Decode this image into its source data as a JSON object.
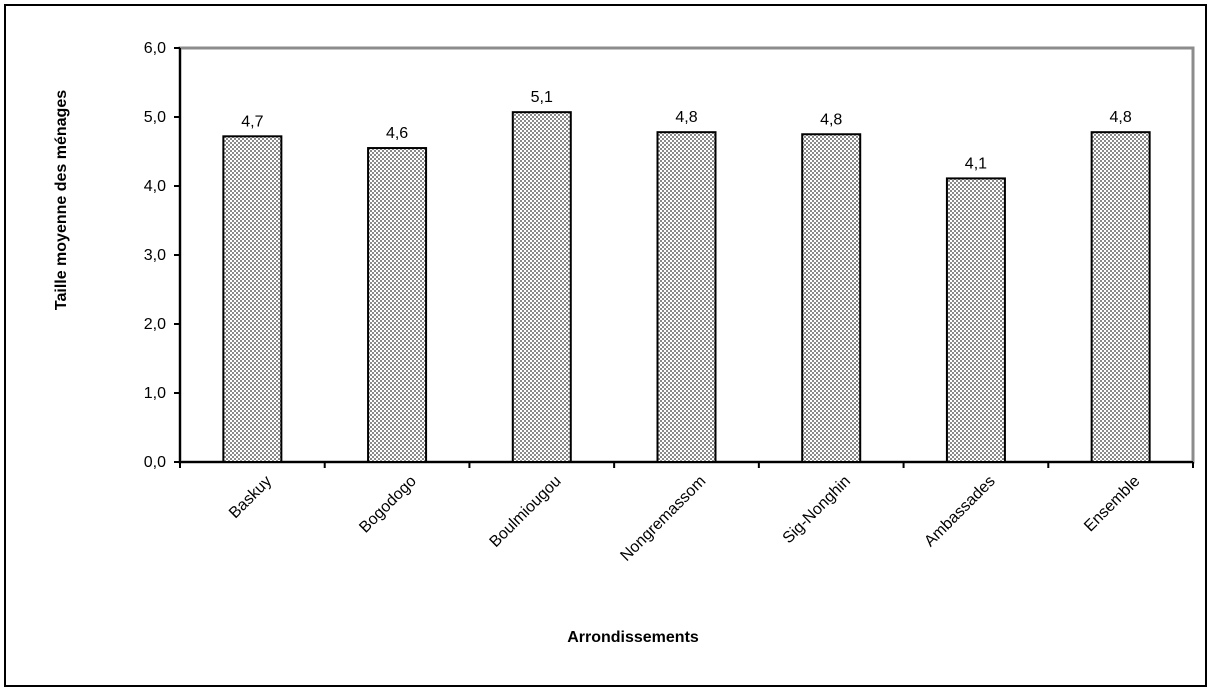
{
  "chart_data": {
    "type": "bar",
    "xlabel": "Arrondissements",
    "ylabel": "Taille moyenne des ménages",
    "ylim": [
      0,
      6
    ],
    "ytick_step": 1,
    "ytick_labels": [
      "0,0",
      "1,0",
      "2,0",
      "3,0",
      "4,0",
      "5,0",
      "6,0"
    ],
    "categories": [
      "Baskuy",
      "Bogodogo",
      "Boulmiougou",
      "Nongremassom",
      "Sig-Nonghin",
      "Ambassades",
      "Ensemble"
    ],
    "values": [
      4.72,
      4.55,
      5.07,
      4.78,
      4.75,
      4.11,
      4.78
    ],
    "data_labels": [
      "4,7",
      "4,6",
      "5,1",
      "4,8",
      "4,8",
      "4,1",
      "4,8"
    ],
    "grid": false,
    "bar_fill": "crosshatch-pattern",
    "colors": {
      "bar_stroke": "#000000",
      "bar_pattern_dark": "#8a8a8a",
      "bar_pattern_light": "#ffffff",
      "plot_border": "#8c8c8c"
    }
  }
}
